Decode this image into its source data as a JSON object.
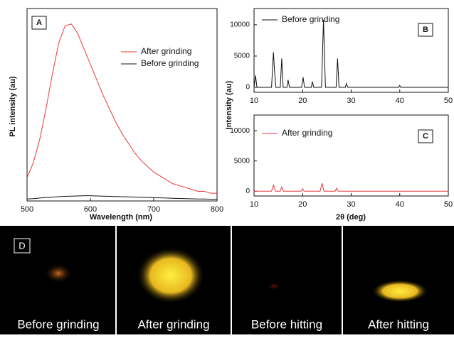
{
  "chart_data": [
    {
      "type": "line",
      "panel_label": "A",
      "xlabel": "Wavelength (nm)",
      "ylabel": "PL intensity (au)",
      "x": [
        500,
        510,
        520,
        530,
        540,
        550,
        560,
        570,
        580,
        590,
        600,
        610,
        620,
        630,
        640,
        650,
        660,
        670,
        680,
        690,
        700,
        710,
        720,
        730,
        740,
        750,
        760,
        770,
        780,
        790,
        800
      ],
      "series": [
        {
          "name": "After grinding",
          "color": "#e8393c",
          "values": [
            12,
            20,
            32,
            48,
            66,
            82,
            91,
            92,
            87,
            79,
            71,
            63,
            55,
            48,
            41,
            35,
            30,
            25,
            21,
            18,
            15,
            13,
            11,
            9,
            8,
            7,
            6,
            5,
            5,
            4,
            4
          ]
        },
        {
          "name": "Before grinding",
          "color": "#111111",
          "values": [
            1,
            1.2,
            1.5,
            1.8,
            2,
            2.2,
            2.4,
            2.5,
            2.6,
            2.7,
            2.7,
            2.6,
            2.5,
            2.4,
            2.3,
            2.2,
            2.1,
            2,
            1.9,
            1.8,
            1.7,
            1.6,
            1.5,
            1.4,
            1.3,
            1.2,
            1.1,
            1,
            1,
            0.9,
            0.9
          ]
        }
      ],
      "xlim": [
        500,
        800
      ],
      "xticks": [
        500,
        600,
        700,
        800
      ],
      "ylim": [
        0,
        100
      ]
    },
    {
      "type": "line",
      "panel_label": "B",
      "ylabel": "Intensity (au)",
      "x": [
        10,
        10.3,
        10.6,
        13.6,
        14,
        14.2,
        14.5,
        15.4,
        15.7,
        16,
        16.8,
        17,
        17.3,
        19.8,
        20.1,
        20.4,
        21.8,
        22,
        22.3,
        23.9,
        24.3,
        24.7,
        26.9,
        27.2,
        27.5,
        28.8,
        29,
        29.3,
        39.8,
        40,
        40.2,
        50
      ],
      "series": [
        {
          "name": "Before grinding",
          "color": "#111111",
          "values": [
            0,
            1900,
            0,
            0,
            5600,
            2800,
            0,
            0,
            4600,
            0,
            0,
            1200,
            0,
            0,
            1600,
            0,
            0,
            900,
            0,
            0,
            10800,
            0,
            0,
            4600,
            0,
            0,
            600,
            0,
            0,
            300,
            0,
            0
          ]
        }
      ],
      "xlim": [
        10,
        50
      ],
      "xticks": [
        10,
        20,
        30,
        40,
        50
      ],
      "ylim": [
        -800,
        12600
      ],
      "yticks": [
        0,
        5000,
        10000
      ]
    },
    {
      "type": "line",
      "panel_label": "C",
      "xlabel": "2θ (deg)",
      "x": [
        10,
        13.6,
        14,
        14.4,
        15.4,
        15.7,
        16,
        19.7,
        20,
        20.3,
        23.6,
        24,
        24.4,
        26.7,
        27,
        27.3,
        50
      ],
      "series": [
        {
          "name": "After grinding",
          "color": "#e8393c",
          "values": [
            0,
            0,
            1000,
            0,
            0,
            700,
            0,
            0,
            400,
            0,
            0,
            1300,
            0,
            0,
            500,
            0,
            0
          ]
        }
      ],
      "xlim": [
        10,
        50
      ],
      "xticks": [
        10,
        20,
        30,
        40,
        50
      ],
      "ylim": [
        -800,
        12600
      ],
      "yticks": [
        0,
        5000,
        10000
      ]
    }
  ],
  "panel_d": {
    "label": "D",
    "captions": [
      "Before grinding",
      "After grinding",
      "Before hitting",
      "After hitting"
    ]
  }
}
